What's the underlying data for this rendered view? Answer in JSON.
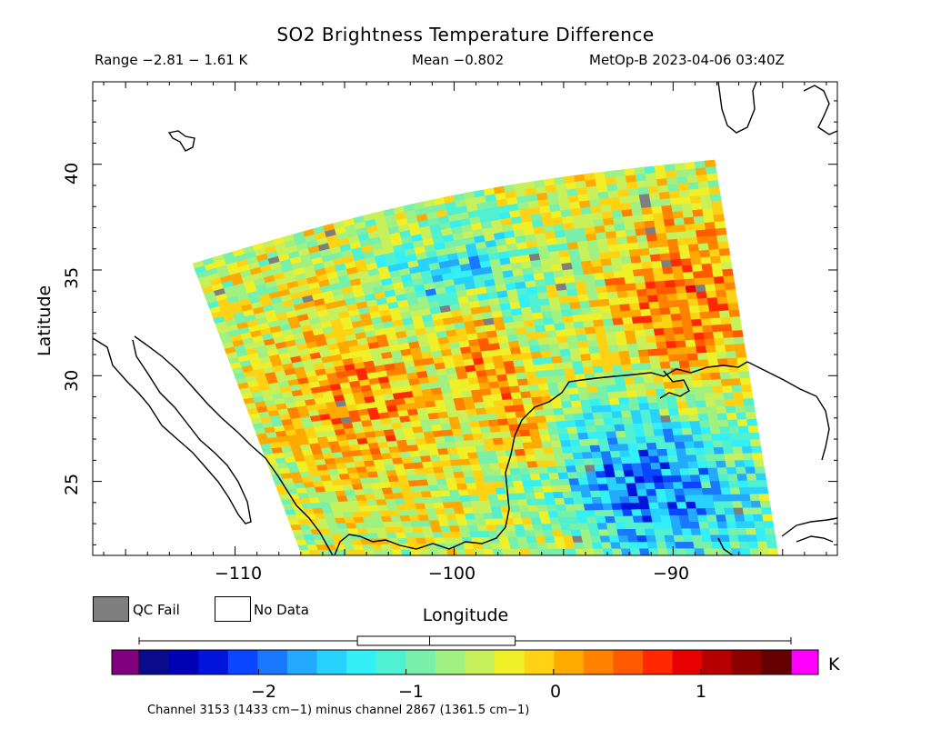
{
  "header": {
    "title": "SO2 Brightness Temperature Difference",
    "range": "Range −2.81 − 1.61 K",
    "mean": "Mean −0.802",
    "satellite_time": "MetOp-B 2023-04-06 03:40Z"
  },
  "axes": {
    "xlabel": "Longitude",
    "ylabel": "Latitude",
    "lon_ticks": [
      "−110",
      "−100",
      "−90"
    ],
    "lat_ticks": [
      "40",
      "35",
      "30",
      "25"
    ],
    "lon_range": [
      -116.5,
      -82.5
    ],
    "lat_range": [
      21.5,
      43.9
    ]
  },
  "legend": {
    "qc_fail": "QC Fail",
    "no_data": "No Data"
  },
  "colorbar": {
    "unit": "K",
    "ticks": [
      "−2",
      "−1",
      "0",
      "1"
    ],
    "range": [
      -2.81,
      1.61
    ],
    "boxplot": {
      "min": -2.81,
      "q1": -1.33,
      "median": -0.84,
      "q3": -0.26,
      "max": 1.61
    },
    "under_color": "#800080",
    "over_color": "#ff00ff",
    "colors": [
      "#0a0a8c",
      "#0000b4",
      "#0014dc",
      "#0a46ff",
      "#1978ff",
      "#23aaff",
      "#28d2ff",
      "#32f0f5",
      "#50f0d2",
      "#78f0aa",
      "#a0f082",
      "#c8f05a",
      "#f0f028",
      "#ffd214",
      "#ffaa00",
      "#ff8200",
      "#ff5a00",
      "#ff2800",
      "#e60000",
      "#b40000",
      "#8c0000",
      "#640000"
    ]
  },
  "footnote": "Channel 3153 (1433 cm−1) minus channel 2867 (1361.5 cm−1)",
  "colors": {
    "qc_fail": "#7f7f7f",
    "coastline": "#000000",
    "background": "#ffffff"
  }
}
